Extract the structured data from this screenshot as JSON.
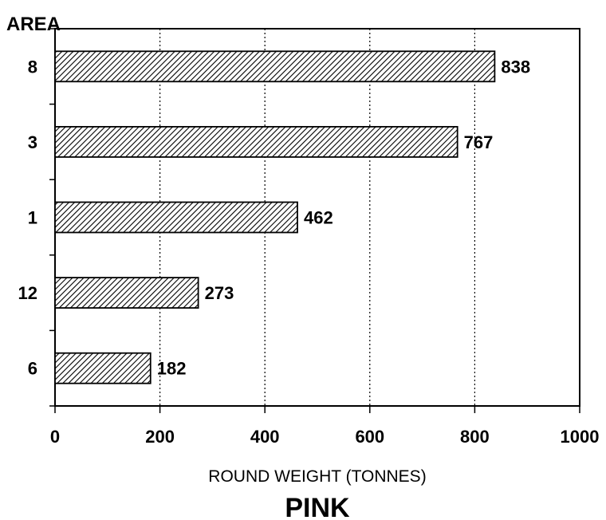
{
  "chart_data": {
    "type": "bar",
    "orientation": "horizontal",
    "title": "PINK",
    "ylabel": "AREA",
    "xlabel": "ROUND WEIGHT (TONNES)",
    "categories": [
      "8",
      "3",
      "1",
      "12",
      "6"
    ],
    "values": [
      838,
      767,
      462,
      273,
      182
    ],
    "xlim": [
      0,
      1000
    ],
    "xticks": [
      "0",
      "200",
      "400",
      "600",
      "800",
      "1000"
    ],
    "grid": "vertical dotted",
    "bar_fill": "diagonal hatch"
  }
}
